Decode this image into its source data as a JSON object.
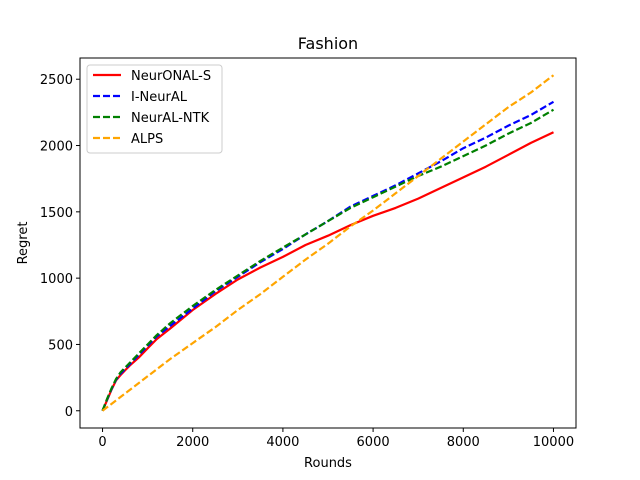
{
  "chart_data": {
    "type": "line",
    "title": "Fashion",
    "xlabel": "Rounds",
    "ylabel": "Regret",
    "xlim": [
      -500,
      10500
    ],
    "ylim": [
      -130,
      2660
    ],
    "x_ticks": [
      0,
      2000,
      4000,
      6000,
      8000,
      10000
    ],
    "y_ticks": [
      0,
      500,
      1000,
      1500,
      2000,
      2500
    ],
    "legend_position": "top-left",
    "grid": false,
    "series": [
      {
        "name": "NeurONAL-S",
        "color": "#ff0000",
        "dash": "solid",
        "x": [
          0,
          100,
          200,
          300,
          400,
          600,
          800,
          1000,
          1200,
          1500,
          2000,
          2500,
          3000,
          3500,
          4000,
          4500,
          5000,
          5500,
          6000,
          6500,
          7000,
          7500,
          8000,
          8500,
          9000,
          9500,
          10000
        ],
        "y": [
          0,
          80,
          160,
          230,
          270,
          340,
          400,
          470,
          540,
          620,
          760,
          880,
          990,
          1080,
          1160,
          1250,
          1320,
          1400,
          1470,
          1530,
          1600,
          1680,
          1760,
          1840,
          1930,
          2020,
          2100
        ]
      },
      {
        "name": "I-NeurAL",
        "color": "#0000ff",
        "dash": "dashed",
        "x": [
          0,
          100,
          200,
          300,
          400,
          600,
          800,
          1000,
          1200,
          1500,
          2000,
          2500,
          3000,
          3500,
          4000,
          4500,
          5000,
          5500,
          6000,
          6500,
          7000,
          7500,
          8000,
          8500,
          9000,
          9500,
          10000
        ],
        "y": [
          0,
          85,
          165,
          235,
          280,
          350,
          420,
          490,
          560,
          640,
          770,
          900,
          1010,
          1120,
          1220,
          1330,
          1430,
          1540,
          1620,
          1700,
          1790,
          1880,
          1980,
          2060,
          2150,
          2230,
          2330
        ]
      },
      {
        "name": "NeurAL-NTK",
        "color": "#008000",
        "dash": "dashed",
        "x": [
          0,
          100,
          200,
          300,
          400,
          600,
          800,
          1000,
          1200,
          1500,
          2000,
          2500,
          3000,
          3500,
          4000,
          4500,
          5000,
          5500,
          6000,
          6500,
          7000,
          7500,
          8000,
          8500,
          9000,
          9500,
          10000
        ],
        "y": [
          0,
          90,
          170,
          240,
          290,
          360,
          430,
          500,
          570,
          660,
          790,
          910,
          1020,
          1130,
          1230,
          1330,
          1430,
          1530,
          1610,
          1690,
          1770,
          1840,
          1920,
          2000,
          2090,
          2170,
          2270
        ]
      },
      {
        "name": "ALPS",
        "color": "#ffa500",
        "dash": "dashed",
        "x": [
          0,
          500,
          1000,
          1500,
          2000,
          2500,
          3000,
          3500,
          4000,
          4500,
          5000,
          5500,
          6000,
          6500,
          7000,
          7500,
          8000,
          8500,
          9000,
          9500,
          10000
        ],
        "y": [
          0,
          130,
          260,
          390,
          510,
          630,
          760,
          880,
          1010,
          1140,
          1260,
          1390,
          1510,
          1640,
          1770,
          1900,
          2030,
          2160,
          2290,
          2400,
          2530
        ]
      }
    ]
  }
}
